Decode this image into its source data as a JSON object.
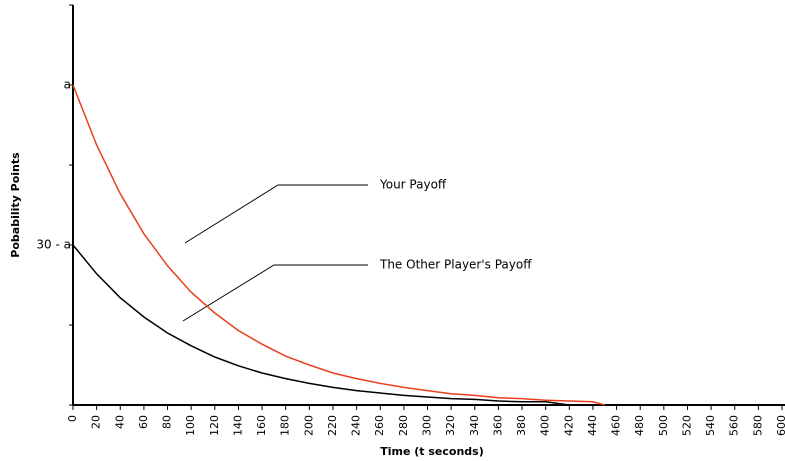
{
  "chart_data": {
    "type": "line",
    "xlabel": "Time (t seconds)",
    "ylabel": "Pobability Points",
    "xlim": [
      0,
      600
    ],
    "xticks": [
      0,
      20,
      40,
      60,
      80,
      100,
      120,
      140,
      160,
      180,
      200,
      220,
      240,
      260,
      280,
      300,
      320,
      340,
      360,
      380,
      400,
      420,
      440,
      460,
      480,
      500,
      520,
      540,
      560,
      580,
      600
    ],
    "ylim": [
      0,
      50
    ],
    "yticks": [
      {
        "value": 0,
        "label": null
      },
      {
        "value": 10,
        "label": null
      },
      {
        "value": 20,
        "label": "30 - a"
      },
      {
        "value": 30,
        "label": null
      },
      {
        "value": 40,
        "label": "a"
      },
      {
        "value": 50,
        "label": null
      }
    ],
    "series": [
      {
        "name": "Your Payoff",
        "color": "#e8401c",
        "x": [
          0,
          20,
          40,
          60,
          80,
          100,
          120,
          140,
          160,
          180,
          200,
          220,
          240,
          260,
          280,
          300,
          320,
          340,
          360,
          380,
          400,
          420,
          440,
          450
        ],
        "values": [
          40,
          32.5,
          26.4,
          21.4,
          17.4,
          14.1,
          11.5,
          9.3,
          7.6,
          6.1,
          5.0,
          4.0,
          3.3,
          2.7,
          2.2,
          1.8,
          1.4,
          1.2,
          0.9,
          0.8,
          0.6,
          0.5,
          0.4,
          0
        ]
      },
      {
        "name": "The Other Player's Payoff",
        "color": "#000000",
        "x": [
          0,
          20,
          40,
          60,
          80,
          100,
          120,
          140,
          160,
          180,
          200,
          220,
          240,
          260,
          280,
          300,
          320,
          340,
          360,
          380,
          400,
          420
        ],
        "values": [
          20,
          16.4,
          13.4,
          11.0,
          9.0,
          7.4,
          6.0,
          4.9,
          4.0,
          3.3,
          2.7,
          2.2,
          1.8,
          1.5,
          1.2,
          1.0,
          0.8,
          0.7,
          0.5,
          0.4,
          0.4,
          0
        ]
      }
    ]
  }
}
